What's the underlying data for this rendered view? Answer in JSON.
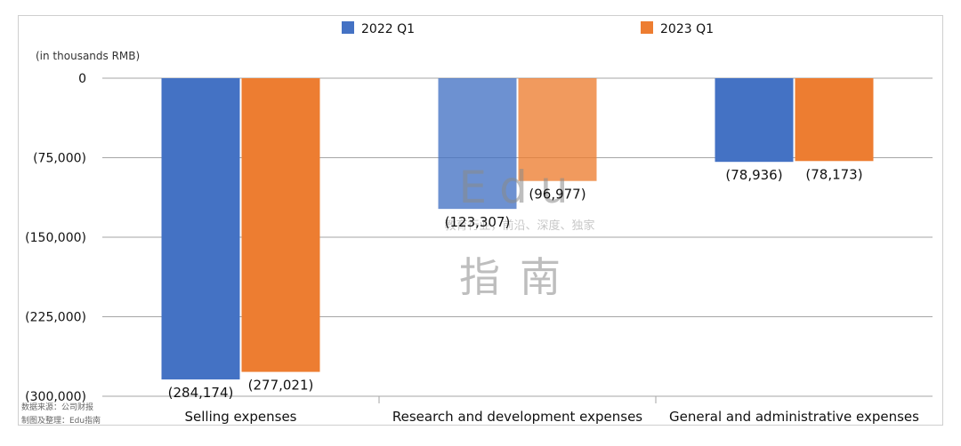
{
  "chart_data": {
    "type": "bar",
    "title": "",
    "units_label": "(in thousands RMB)",
    "categories": [
      "Selling expenses",
      "Research and development expenses",
      "General and administrative expenses"
    ],
    "series": [
      {
        "name": "2022 Q1",
        "values": [
          -284174,
          -123307,
          -78936
        ],
        "labels": [
          "(284,174)",
          "(123,307)",
          "(78,936)"
        ],
        "color": "#4472c4"
      },
      {
        "name": "2023 Q1",
        "values": [
          -277021,
          -96977,
          -78173
        ],
        "labels": [
          "(277,021)",
          "(96,977)",
          "(78,173)"
        ],
        "color": "#ed7d31"
      }
    ],
    "ylim": [
      -300000,
      0
    ],
    "yticks": [
      0,
      -75000,
      -150000,
      -225000,
      -300000
    ],
    "ytick_labels": [
      "0",
      "(75,000)",
      "(150,000)",
      "(225,000)",
      "(300,000)"
    ],
    "grid": true,
    "legend": "top-center"
  },
  "watermark": {
    "logo": "Edu",
    "tagline": "教育行业，前沿、深度、独家",
    "name": "指南"
  },
  "footnote": {
    "source": "数据来源：公司财报",
    "credit": "制图及整理：Edu指南"
  }
}
